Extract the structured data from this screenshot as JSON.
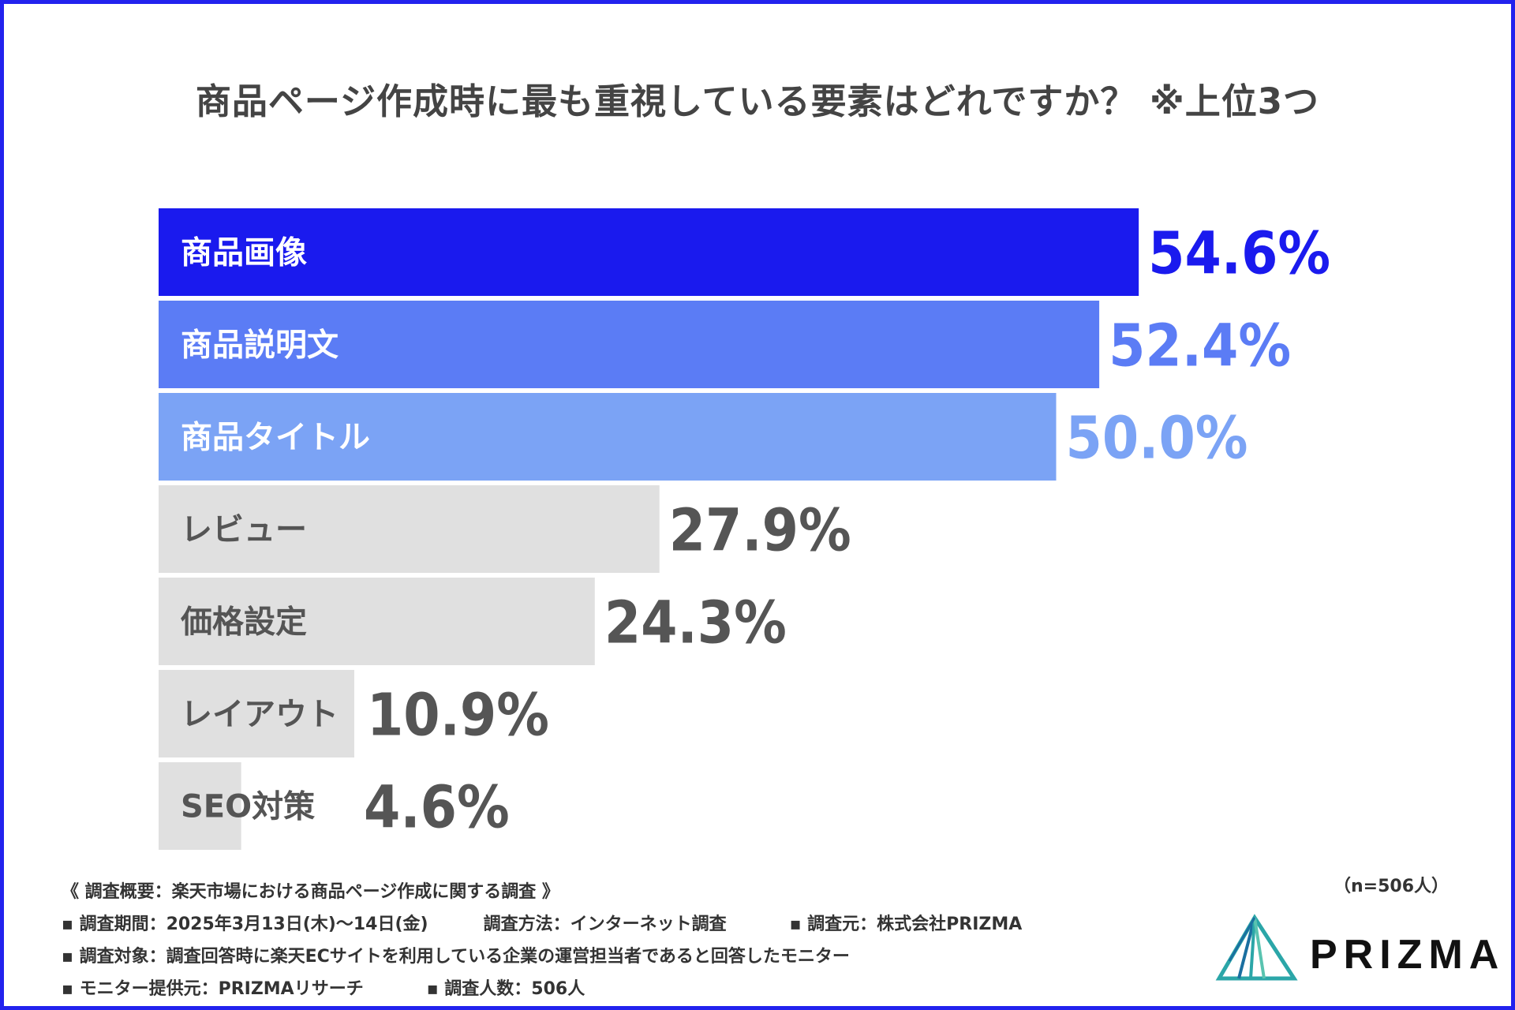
{
  "chart_data": {
    "type": "bar",
    "orientation": "horizontal",
    "title": "商品ページ作成時に最も重視している要素はどれですか？ ※上位3つ",
    "categories": [
      "商品画像",
      "商品説明文",
      "商品タイトル",
      "レビュー",
      "価格設定",
      "レイアウト",
      "SEO対策"
    ],
    "values": [
      54.6,
      52.4,
      50.0,
      27.9,
      24.3,
      10.9,
      4.6
    ],
    "value_labels": [
      "54.6%",
      "52.4%",
      "50.0%",
      "27.9%",
      "24.3%",
      "10.9%",
      "4.6%"
    ],
    "bar_colors": [
      "#1a1aee",
      "#5b7cf5",
      "#7ba3f5",
      "#e0e0e0",
      "#e0e0e0",
      "#e0e0e0",
      "#e0e0e0"
    ],
    "label_colors": [
      "#ffffff",
      "#ffffff",
      "#ffffff",
      "#555555",
      "#555555",
      "#555555",
      "#555555"
    ],
    "value_colors": [
      "#1a1aee",
      "#5b7cf5",
      "#7ba3f5",
      "#555555",
      "#555555",
      "#555555",
      "#555555"
    ],
    "xlim": [
      0,
      100
    ],
    "grid": false
  },
  "footer": {
    "overview": "《 調査概要：楽天市場における商品ページ作成に関する調査 》",
    "period": "▪ 調査期間：2025年3月13日(木)～14日(金)",
    "method": "調査方法：インターネット調査",
    "source": "▪ 調査元：株式会社PRIZMA",
    "target": "▪ 調査対象：調査回答時に楽天ECサイトを利用している企業の運営担当者であると回答したモニター",
    "provider": "▪ モニター提供元：PRIZMAリサーチ",
    "count": "▪ 調査人数：506人"
  },
  "sample_size": "（n=506人）",
  "logo": {
    "text": "PRIZMA",
    "colors": [
      "#1a6fa0",
      "#2ba6a8",
      "#59c3b0"
    ]
  },
  "frame_color": "#2222ee"
}
